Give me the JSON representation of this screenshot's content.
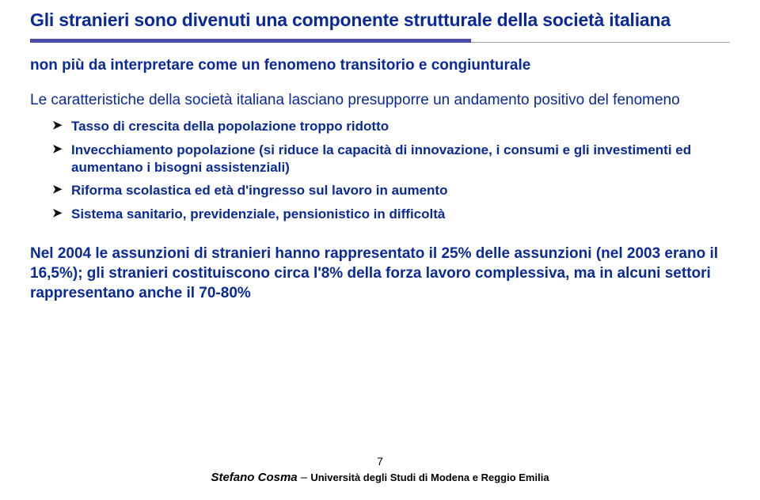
{
  "title": {
    "text": "Gli stranieri sono divenuti una componente strutturale della società italiana",
    "color": "#0a2a9a",
    "fontsize": 23
  },
  "rule": {
    "outer_color": "#9aa0b0",
    "inner_color": "#4a4aa8",
    "inner_width_pct": 63
  },
  "subtitle": {
    "text": "non più da interpretare come un fenomeno transitorio e congiunturale",
    "color": "#0a2a9a",
    "fontsize": 19
  },
  "lead": {
    "text": "Le caratteristiche della società italiana lasciano presupporre un andamento positivo del fenomeno",
    "color": "#0a2a9a",
    "fontsize": 19
  },
  "bullets": {
    "fontsize": 17,
    "color": "#0a2a9a",
    "items": [
      "Tasso di crescita della popolazione troppo ridotto",
      "Invecchiamento popolazione (si riduce la capacità di innovazione, i consumi e gli investimenti ed aumentano i bisogni assistenziali)",
      "Riforma scolastica ed età d'ingresso sul lavoro in aumento",
      "Sistema sanitario, previdenziale, pensionistico in difficoltà"
    ]
  },
  "conclusion": {
    "text": "Nel 2004 le assunzioni di stranieri hanno rappresentato il 25% delle assunzioni (nel 2003 erano il 16,5%); gli stranieri costituiscono circa l'8% della forza lavoro complessiva, ma in alcuni settori rappresentano anche il 70-80%",
    "color": "#0a2a9a",
    "fontsize": 19
  },
  "footer": {
    "page": "7",
    "name": "Stefano Cosma",
    "dash": " – ",
    "uni": "Università degli Studi di Modena e Reggio Emilia"
  }
}
